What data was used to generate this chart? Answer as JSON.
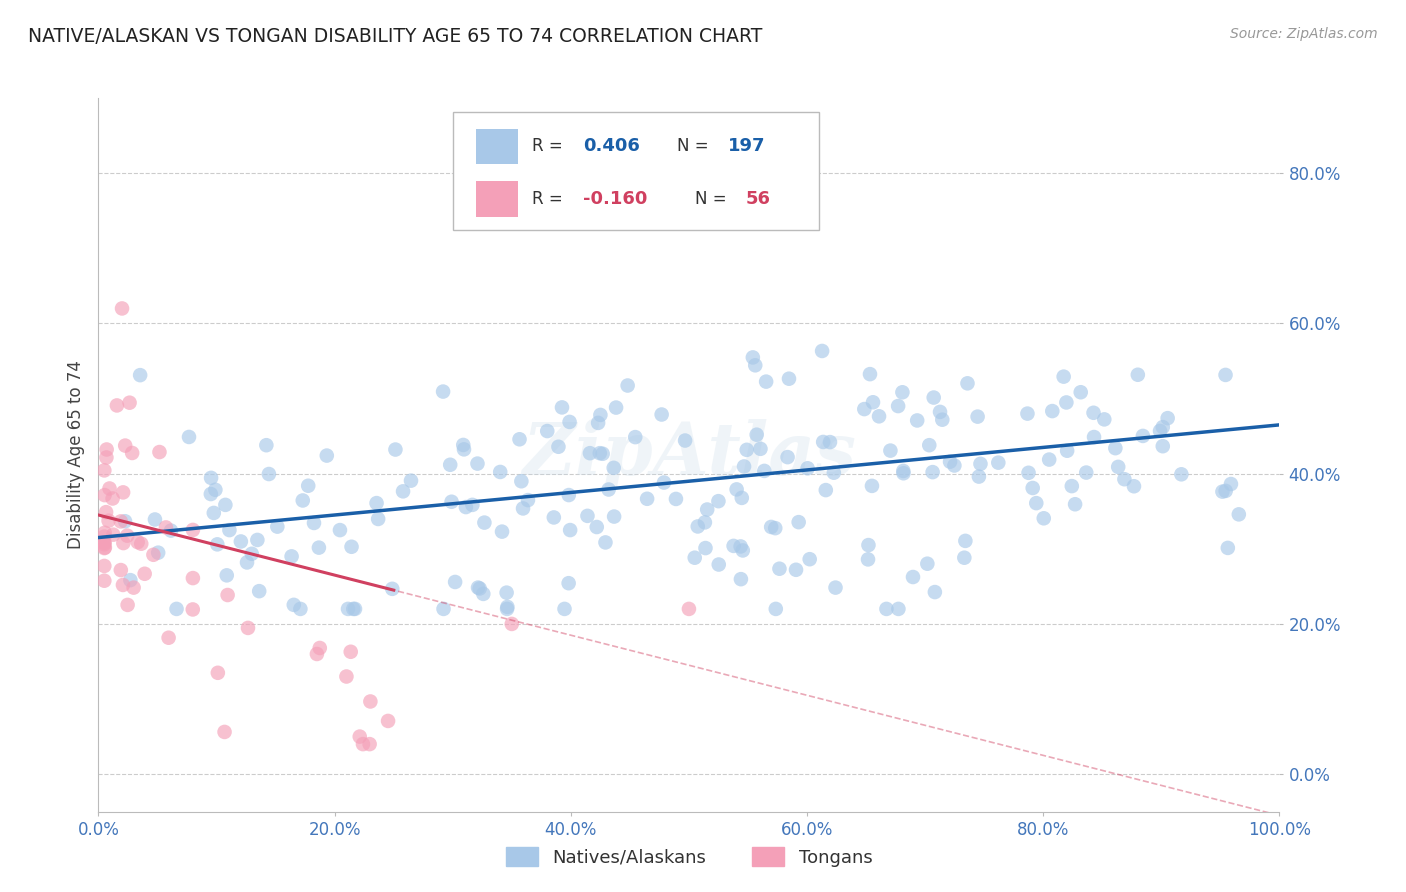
{
  "title": "NATIVE/ALASKAN VS TONGAN DISABILITY AGE 65 TO 74 CORRELATION CHART",
  "source": "Source: ZipAtlas.com",
  "ylabel": "Disability Age 65 to 74",
  "xlim": [
    0.0,
    1.0
  ],
  "ylim": [
    -0.05,
    0.9
  ],
  "xtick_vals": [
    0.0,
    0.2,
    0.4,
    0.6,
    0.8,
    1.0
  ],
  "xticklabels": [
    "0.0%",
    "20.0%",
    "40.0%",
    "60.0%",
    "80.0%",
    "100.0%"
  ],
  "ytick_vals": [
    0.0,
    0.2,
    0.4,
    0.6,
    0.8
  ],
  "yticklabels": [
    "0.0%",
    "20.0%",
    "40.0%",
    "60.0%",
    "80.0%"
  ],
  "R_blue": 0.406,
  "N_blue": 197,
  "R_pink": -0.16,
  "N_pink": 56,
  "blue_color": "#a8c8e8",
  "pink_color": "#f4a0b8",
  "blue_line_color": "#1a5fa8",
  "pink_line_color": "#d04060",
  "axis_tick_color": "#4477bb",
  "watermark": "ZipAtlas",
  "legend_blue_rval": "0.406",
  "legend_blue_nval": "197",
  "legend_pink_rval": "-0.160",
  "legend_pink_nval": "56",
  "blue_trendline": [
    0.0,
    1.0,
    0.315,
    0.465
  ],
  "pink_trendline_solid": [
    0.0,
    0.25,
    0.345,
    0.245
  ],
  "pink_trendline_dashed": [
    0.0,
    1.0,
    0.345,
    -0.055
  ]
}
